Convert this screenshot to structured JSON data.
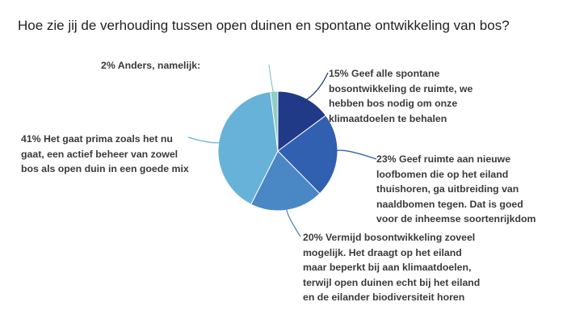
{
  "question": "Hoe zie jij de verhouding tussen open duinen en spontane ontwikkeling van bos?",
  "chart_data": {
    "type": "pie",
    "title": "Hoe zie jij de verhouding tussen open duinen en spontane ontwikkeling van bos?",
    "legend": "none",
    "slices": [
      {
        "percent": 15,
        "label": "15% Geef alle spontane bosontwikkeling de ruimte, we hebben bos nodig om onze klimaatdoelen te behalen",
        "color": "#213a87"
      },
      {
        "percent": 23,
        "label": "23% Geef ruimte aan nieuwe loofbomen die op het eiland thuishoren, ga uitbreiding van naaldbomen tegen. Dat is goed voor de inheemse soortenrijkdom",
        "color": "#3160b0"
      },
      {
        "percent": 20,
        "label": "20% Vermijd bosontwikkeling zoveel mogelijk. Het draagt op het eiland maar beperkt bij aan klimaatdoelen, terwijl open duinen echt bij het eiland en de eilander biodiversiteit horen",
        "color": "#4a88c5"
      },
      {
        "percent": 41,
        "label": "41% Het gaat prima zoals het nu gaat, een actief beheer van zowel bos als open duin in een goede mix",
        "color": "#67b2d8"
      },
      {
        "percent": 2,
        "label": "2% Anders, namelijk:",
        "color": "#8fcfc8"
      }
    ]
  }
}
